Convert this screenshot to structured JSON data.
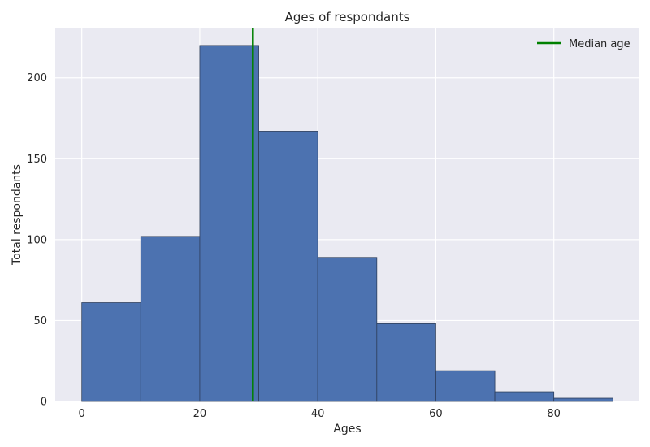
{
  "chart_data": {
    "type": "bar",
    "title": "Ages of respondants",
    "xlabel": "Ages",
    "ylabel": "Total respondants",
    "bins": [
      [
        0,
        10
      ],
      [
        10,
        20
      ],
      [
        20,
        30
      ],
      [
        30,
        40
      ],
      [
        40,
        50
      ],
      [
        50,
        60
      ],
      [
        60,
        70
      ],
      [
        70,
        80
      ],
      [
        80,
        90
      ]
    ],
    "values": [
      61,
      102,
      220,
      167,
      89,
      48,
      19,
      6,
      2
    ],
    "xlim": [
      -4.5,
      94.5
    ],
    "ylim": [
      0,
      231
    ],
    "xticks": [
      0,
      20,
      40,
      60,
      80
    ],
    "yticks": [
      0,
      50,
      100,
      150,
      200
    ],
    "median": 29,
    "legend": {
      "label": "Median age",
      "position": "top-right"
    },
    "grid": true,
    "colors": {
      "bar": "#4c72b0",
      "bar_edge": "#2e3f5c",
      "median_line": "#008000",
      "background": "#eaeaf2",
      "grid": "#ffffff"
    }
  }
}
